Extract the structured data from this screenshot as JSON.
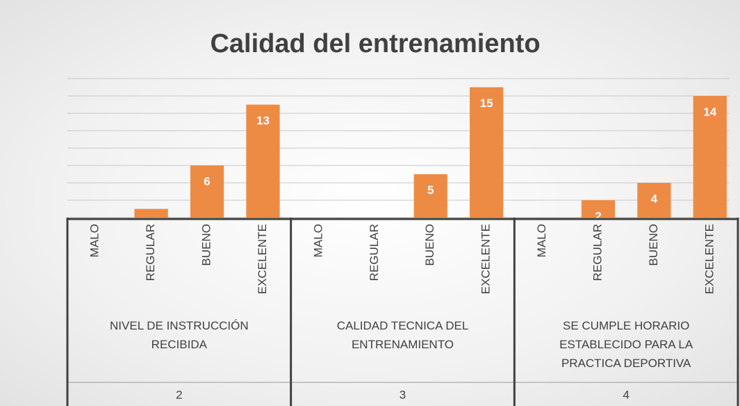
{
  "chart_data": {
    "type": "bar",
    "title": "Calidad del entrenamiento",
    "categories": [
      "MALO",
      "REGULAR",
      "BUENO",
      "EXCELENTE",
      "MALO",
      "REGULAR",
      "BUENO",
      "EXCELENTE",
      "MALO",
      "REGULAR",
      "BUENO",
      "EXCELENTE"
    ],
    "groups": [
      {
        "name": "NIVEL DE INSTRUCCIÓN RECIBIDA",
        "number": 2
      },
      {
        "name": "CALIDAD TECNICA DEL ENTRENAMIENTO",
        "number": 3
      },
      {
        "name": "SE CUMPLE HORARIO ESTABLECIDO PARA LA PRACTICA DEPORTIVA",
        "number": 4
      }
    ],
    "values": [
      0,
      1,
      6,
      13,
      0,
      0,
      5,
      15,
      0,
      2,
      4,
      14
    ],
    "color": "#ed8b45",
    "ylim": [
      0,
      16
    ],
    "yticks": [
      0,
      2,
      4,
      6,
      8,
      10,
      12,
      14,
      16
    ],
    "grid": true
  }
}
